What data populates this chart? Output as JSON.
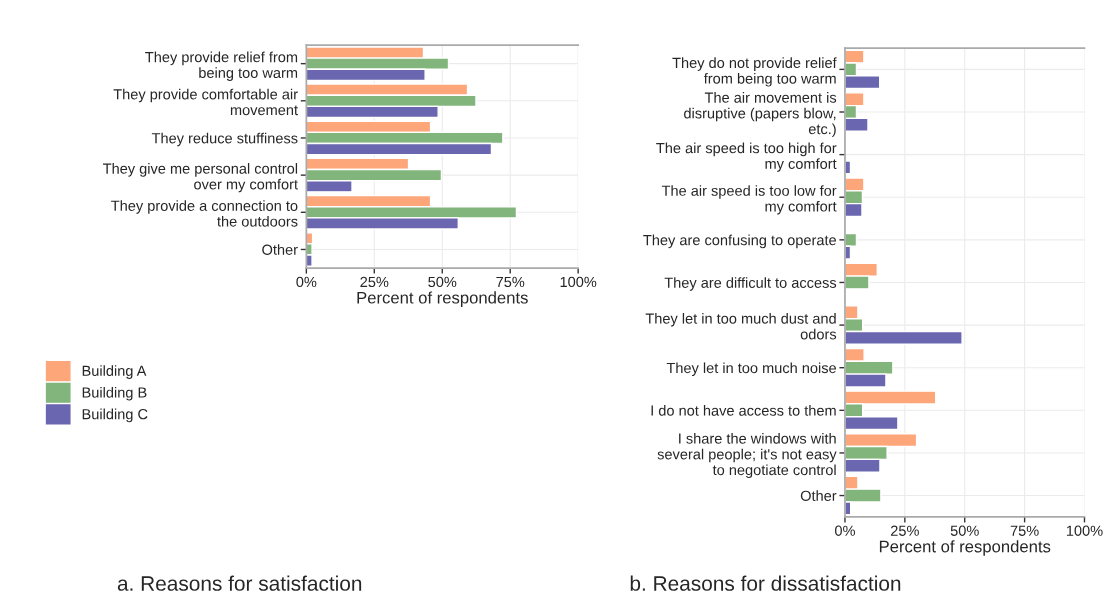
{
  "chart_data": [
    {
      "type": "bar",
      "orientation": "horizontal",
      "title": "a. Reasons for satisfaction",
      "xlabel": "Percent of respondents",
      "categories": [
        "They provide relief from\nbeing too warm",
        "They provide comfortable air\nmovement",
        "They reduce stuffiness",
        "They give me personal control\nover my comfort",
        "They provide a connection to\nthe outdoors",
        "Other"
      ],
      "series": [
        {
          "name": "Building A",
          "color": "#fca67a",
          "values": [
            43.1,
            59.3,
            45.7,
            37.6,
            45.7,
            2.3
          ]
        },
        {
          "name": "Building B",
          "color": "#82b57c",
          "values": [
            52.3,
            62.4,
            72.3,
            49.7,
            77.3,
            2.1
          ]
        },
        {
          "name": "Building C",
          "color": "#6a66b0",
          "values": [
            43.7,
            48.5,
            68.1,
            16.8,
            55.9,
            2.1
          ]
        }
      ],
      "xlim": [
        0,
        100
      ],
      "xticks": [
        {
          "value": 0,
          "label": "0%"
        },
        {
          "value": 25,
          "label": "25%"
        },
        {
          "value": 50,
          "label": "50%"
        },
        {
          "value": 75,
          "label": "75%"
        },
        {
          "value": 100,
          "label": "100%"
        }
      ],
      "grid": true,
      "legend": "bottom left"
    },
    {
      "type": "bar",
      "orientation": "horizontal",
      "title": "b. Reasons for dissatisfaction",
      "xlabel": "Percent of respondents",
      "categories": [
        "They do not provide relief\nfrom being too warm",
        "The air movement is\ndisruptive (papers blow,\netc.)",
        "The air speed is too high for\nmy comfort",
        "The air speed is too low for\nmy comfort",
        "They are confusing to operate",
        "They are difficult to access",
        "They let in too much dust and\nodors",
        "They let in too much noise",
        "I do not have access to them",
        "I share the windows with\nseveral people; it's not easy\nto negotiate control",
        "Other"
      ],
      "series": [
        {
          "color": "#fca67a",
          "values": [
            7.9,
            7.9,
            null,
            7.9,
            null,
            13.5,
            5.4,
            8.0,
            37.9,
            29.9,
            5.4
          ]
        },
        {
          "color": "#82b57c",
          "values": [
            4.8,
            4.8,
            null,
            7.3,
            4.8,
            10.0,
            7.4,
            20.0,
            7.4,
            17.6,
            15.0
          ]
        },
        {
          "color": "#6a66b0",
          "values": [
            14.5,
            9.6,
            2.3,
            7.1,
            2.3,
            null,
            48.9,
            17.1,
            22.1,
            14.6,
            2.4
          ]
        }
      ],
      "xlim": [
        0,
        100
      ],
      "xticks": [
        {
          "value": 0,
          "label": "0%"
        },
        {
          "value": 25,
          "label": "25%"
        },
        {
          "value": 50,
          "label": "50%"
        },
        {
          "value": 75,
          "label": "75%"
        },
        {
          "value": 100,
          "label": "100%"
        }
      ],
      "grid": true
    }
  ]
}
